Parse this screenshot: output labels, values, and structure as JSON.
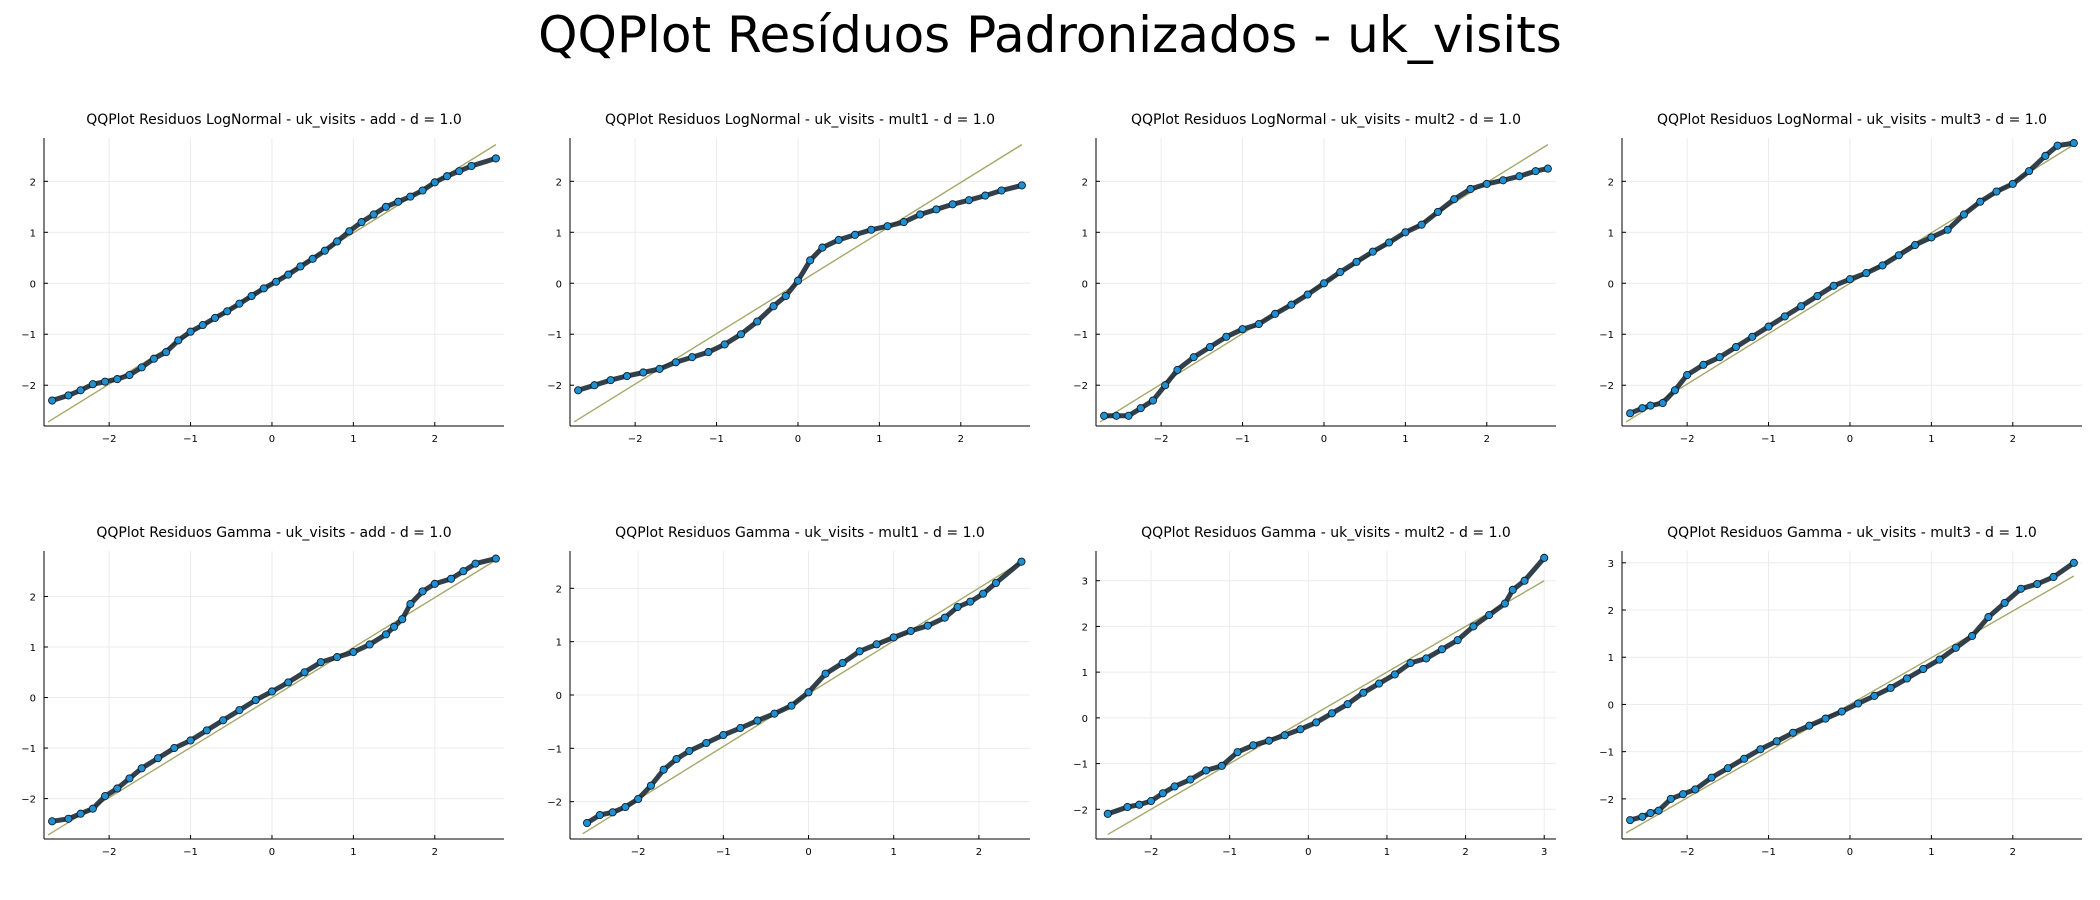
{
  "figure_title": "QQPlot Resíduos Padronizados - uk_visits",
  "colors": {
    "points": "#1f8fd1",
    "point_edge": "#0d1e2a",
    "line": "#a6a86a",
    "grid": "#ececec"
  },
  "chart_data": [
    {
      "type": "scatter",
      "title": "QQPlot Residuos LogNormal - uk_visits - add - d = 1.0",
      "xlim": [
        -2.8,
        2.85
      ],
      "ylim": [
        -2.8,
        2.85
      ],
      "xticks": [
        -2,
        -1,
        0,
        1,
        2
      ],
      "yticks": [
        -2,
        -1,
        0,
        1,
        2
      ],
      "xtick_labels": [
        "−2",
        "−1",
        "0",
        "1",
        "2"
      ],
      "ytick_labels": [
        "−2",
        "−1",
        "0",
        "1",
        "2"
      ],
      "ref_line": [
        [
          -2.75,
          -2.72
        ],
        [
          2.75,
          2.72
        ]
      ],
      "x": [
        -2.7,
        -2.5,
        -2.35,
        -2.2,
        -2.05,
        -1.9,
        -1.75,
        -1.6,
        -1.45,
        -1.3,
        -1.15,
        -1.0,
        -0.85,
        -0.7,
        -0.55,
        -0.4,
        -0.25,
        -0.1,
        0.05,
        0.2,
        0.35,
        0.5,
        0.65,
        0.8,
        0.95,
        1.1,
        1.25,
        1.4,
        1.55,
        1.7,
        1.85,
        2.0,
        2.15,
        2.3,
        2.45,
        2.75
      ],
      "y": [
        -2.3,
        -2.2,
        -2.1,
        -1.98,
        -1.93,
        -1.88,
        -1.8,
        -1.65,
        -1.48,
        -1.35,
        -1.12,
        -0.95,
        -0.82,
        -0.68,
        -0.55,
        -0.4,
        -0.25,
        -0.1,
        0.03,
        0.17,
        0.33,
        0.48,
        0.64,
        0.82,
        1.02,
        1.2,
        1.35,
        1.5,
        1.6,
        1.7,
        1.82,
        1.98,
        2.1,
        2.2,
        2.3,
        2.45
      ]
    },
    {
      "type": "scatter",
      "title": "QQPlot Residuos LogNormal - uk_visits - mult1 - d = 1.0",
      "xlim": [
        -2.8,
        2.85
      ],
      "ylim": [
        -2.8,
        2.85
      ],
      "xticks": [
        -2,
        -1,
        0,
        1,
        2
      ],
      "yticks": [
        -2,
        -1,
        0,
        1,
        2
      ],
      "xtick_labels": [
        "−2",
        "−1",
        "0",
        "1",
        "2"
      ],
      "ytick_labels": [
        "−2",
        "−1",
        "0",
        "1",
        "2"
      ],
      "ref_line": [
        [
          -2.75,
          -2.72
        ],
        [
          2.75,
          2.72
        ]
      ],
      "x": [
        -2.7,
        -2.5,
        -2.3,
        -2.1,
        -1.9,
        -1.7,
        -1.5,
        -1.3,
        -1.1,
        -0.9,
        -0.7,
        -0.5,
        -0.3,
        -0.15,
        0.0,
        0.15,
        0.3,
        0.5,
        0.7,
        0.9,
        1.1,
        1.3,
        1.5,
        1.7,
        1.9,
        2.1,
        2.3,
        2.5,
        2.75
      ],
      "y": [
        -2.1,
        -2.0,
        -1.9,
        -1.82,
        -1.75,
        -1.68,
        -1.55,
        -1.45,
        -1.35,
        -1.2,
        -1.0,
        -0.75,
        -0.45,
        -0.25,
        0.05,
        0.45,
        0.7,
        0.85,
        0.95,
        1.05,
        1.12,
        1.2,
        1.35,
        1.45,
        1.55,
        1.63,
        1.72,
        1.82,
        1.92
      ]
    },
    {
      "type": "scatter",
      "title": "QQPlot Residuos LogNormal - uk_visits - mult2 - d = 1.0",
      "xlim": [
        -2.8,
        2.85
      ],
      "ylim": [
        -2.8,
        2.85
      ],
      "xticks": [
        -2,
        -1,
        0,
        1,
        2
      ],
      "yticks": [
        -2,
        -1,
        0,
        1,
        2
      ],
      "xtick_labels": [
        "−2",
        "−1",
        "0",
        "1",
        "2"
      ],
      "ytick_labels": [
        "−2",
        "−1",
        "0",
        "1",
        "2"
      ],
      "ref_line": [
        [
          -2.75,
          -2.72
        ],
        [
          2.75,
          2.72
        ]
      ],
      "x": [
        -2.7,
        -2.55,
        -2.4,
        -2.25,
        -2.1,
        -1.95,
        -1.8,
        -1.6,
        -1.4,
        -1.2,
        -1.0,
        -0.8,
        -0.6,
        -0.4,
        -0.2,
        0.0,
        0.2,
        0.4,
        0.6,
        0.8,
        1.0,
        1.2,
        1.4,
        1.6,
        1.8,
        2.0,
        2.2,
        2.4,
        2.6,
        2.75
      ],
      "y": [
        -2.6,
        -2.6,
        -2.6,
        -2.45,
        -2.3,
        -2.0,
        -1.7,
        -1.45,
        -1.25,
        -1.05,
        -0.9,
        -0.8,
        -0.6,
        -0.42,
        -0.22,
        0.0,
        0.22,
        0.42,
        0.62,
        0.8,
        1.0,
        1.15,
        1.4,
        1.65,
        1.85,
        1.95,
        2.02,
        2.1,
        2.2,
        2.25
      ]
    },
    {
      "type": "scatter",
      "title": "QQPlot Residuos LogNormal - uk_visits - mult3 - d = 1.0",
      "xlim": [
        -2.8,
        2.85
      ],
      "ylim": [
        -2.8,
        2.85
      ],
      "xticks": [
        -2,
        -1,
        0,
        1,
        2
      ],
      "yticks": [
        -2,
        -1,
        0,
        1,
        2
      ],
      "xtick_labels": [
        "−2",
        "−1",
        "0",
        "1",
        "2"
      ],
      "ytick_labels": [
        "−2",
        "−1",
        "0",
        "1",
        "2"
      ],
      "ref_line": [
        [
          -2.75,
          -2.72
        ],
        [
          2.75,
          2.72
        ]
      ],
      "x": [
        -2.7,
        -2.55,
        -2.45,
        -2.3,
        -2.15,
        -2.0,
        -1.8,
        -1.6,
        -1.4,
        -1.2,
        -1.0,
        -0.8,
        -0.6,
        -0.4,
        -0.2,
        0.0,
        0.2,
        0.4,
        0.6,
        0.8,
        1.0,
        1.2,
        1.4,
        1.6,
        1.8,
        2.0,
        2.2,
        2.4,
        2.55,
        2.75
      ],
      "y": [
        -2.55,
        -2.45,
        -2.4,
        -2.35,
        -2.1,
        -1.8,
        -1.6,
        -1.45,
        -1.25,
        -1.05,
        -0.85,
        -0.65,
        -0.45,
        -0.25,
        -0.05,
        0.08,
        0.2,
        0.35,
        0.55,
        0.75,
        0.9,
        1.05,
        1.35,
        1.6,
        1.8,
        1.95,
        2.2,
        2.5,
        2.7,
        2.75
      ]
    },
    {
      "type": "scatter",
      "title": "QQPlot Residuos Gamma - uk_visits - add - d = 1.0",
      "xlim": [
        -2.8,
        2.85
      ],
      "ylim": [
        -2.8,
        2.9
      ],
      "xticks": [
        -2,
        -1,
        0,
        1,
        2
      ],
      "yticks": [
        -2,
        -1,
        0,
        1,
        2
      ],
      "xtick_labels": [
        "−2",
        "−1",
        "0",
        "1",
        "2"
      ],
      "ytick_labels": [
        "−2",
        "−1",
        "0",
        "1",
        "2"
      ],
      "ref_line": [
        [
          -2.75,
          -2.72
        ],
        [
          2.75,
          2.72
        ]
      ],
      "x": [
        -2.7,
        -2.5,
        -2.35,
        -2.2,
        -2.05,
        -1.9,
        -1.75,
        -1.6,
        -1.4,
        -1.2,
        -1.0,
        -0.8,
        -0.6,
        -0.4,
        -0.2,
        0.0,
        0.2,
        0.4,
        0.6,
        0.8,
        1.0,
        1.2,
        1.4,
        1.5,
        1.6,
        1.7,
        1.85,
        2.0,
        2.2,
        2.35,
        2.5,
        2.75
      ],
      "y": [
        -2.45,
        -2.4,
        -2.3,
        -2.2,
        -1.95,
        -1.8,
        -1.6,
        -1.4,
        -1.2,
        -1.0,
        -0.85,
        -0.65,
        -0.45,
        -0.25,
        -0.05,
        0.12,
        0.3,
        0.5,
        0.7,
        0.8,
        0.9,
        1.05,
        1.25,
        1.4,
        1.55,
        1.85,
        2.1,
        2.25,
        2.35,
        2.5,
        2.65,
        2.75
      ]
    },
    {
      "type": "scatter",
      "title": "QQPlot Residuos Gamma - uk_visits - mult1 - d = 1.0",
      "xlim": [
        -2.8,
        2.6
      ],
      "ylim": [
        -2.7,
        2.7
      ],
      "xticks": [
        -2,
        -1,
        0,
        1,
        2
      ],
      "yticks": [
        -2,
        -1,
        0,
        1,
        2
      ],
      "xtick_labels": [
        "−2",
        "−1",
        "0",
        "1",
        "2"
      ],
      "ytick_labels": [
        "−2",
        "−1",
        "0",
        "1",
        "2"
      ],
      "ref_line": [
        [
          -2.65,
          -2.6
        ],
        [
          2.5,
          2.5
        ]
      ],
      "x": [
        -2.6,
        -2.45,
        -2.3,
        -2.15,
        -2.0,
        -1.85,
        -1.7,
        -1.55,
        -1.4,
        -1.2,
        -1.0,
        -0.8,
        -0.6,
        -0.4,
        -0.2,
        0.0,
        0.2,
        0.4,
        0.6,
        0.8,
        1.0,
        1.2,
        1.4,
        1.6,
        1.75,
        1.9,
        2.05,
        2.2,
        2.5
      ],
      "y": [
        -2.4,
        -2.25,
        -2.2,
        -2.1,
        -1.95,
        -1.7,
        -1.4,
        -1.2,
        -1.05,
        -0.9,
        -0.75,
        -0.62,
        -0.48,
        -0.35,
        -0.2,
        0.05,
        0.4,
        0.6,
        0.82,
        0.95,
        1.08,
        1.2,
        1.3,
        1.45,
        1.65,
        1.75,
        1.9,
        2.1,
        2.5
      ]
    },
    {
      "type": "scatter",
      "title": "QQPlot Residuos Gamma - uk_visits - mult2 - d = 1.0",
      "xlim": [
        -2.7,
        3.15
      ],
      "ylim": [
        -2.65,
        3.65
      ],
      "xticks": [
        -2,
        -1,
        0,
        1,
        2,
        3
      ],
      "yticks": [
        -2,
        -1,
        0,
        1,
        2,
        3
      ],
      "xtick_labels": [
        "−2",
        "−1",
        "0",
        "1",
        "2",
        "3"
      ],
      "ytick_labels": [
        "−2",
        "−1",
        "0",
        "1",
        "2",
        "3"
      ],
      "ref_line": [
        [
          -2.55,
          -2.55
        ],
        [
          3.0,
          3.0
        ]
      ],
      "x": [
        -2.55,
        -2.3,
        -2.15,
        -2.0,
        -1.85,
        -1.7,
        -1.5,
        -1.3,
        -1.1,
        -0.9,
        -0.7,
        -0.5,
        -0.3,
        -0.1,
        0.1,
        0.3,
        0.5,
        0.7,
        0.9,
        1.1,
        1.3,
        1.5,
        1.7,
        1.9,
        2.1,
        2.3,
        2.5,
        2.6,
        2.75,
        3.0
      ],
      "y": [
        -2.1,
        -1.95,
        -1.9,
        -1.82,
        -1.65,
        -1.5,
        -1.35,
        -1.15,
        -1.05,
        -0.75,
        -0.6,
        -0.5,
        -0.38,
        -0.25,
        -0.1,
        0.1,
        0.3,
        0.55,
        0.75,
        0.95,
        1.2,
        1.3,
        1.5,
        1.7,
        2.0,
        2.25,
        2.5,
        2.8,
        3.0,
        3.5
      ]
    },
    {
      "type": "scatter",
      "title": "QQPlot Residuos Gamma - uk_visits - mult3 - d = 1.0",
      "xlim": [
        -2.8,
        2.85
      ],
      "ylim": [
        -2.85,
        3.25
      ],
      "xticks": [
        -2,
        -1,
        0,
        1,
        2
      ],
      "yticks": [
        -2,
        -1,
        0,
        1,
        2,
        3
      ],
      "xtick_labels": [
        "−2",
        "−1",
        "0",
        "1",
        "2"
      ],
      "ytick_labels": [
        "−2",
        "−1",
        "0",
        "1",
        "2",
        "3"
      ],
      "ref_line": [
        [
          -2.75,
          -2.72
        ],
        [
          2.75,
          2.72
        ]
      ],
      "x": [
        -2.7,
        -2.55,
        -2.45,
        -2.35,
        -2.2,
        -2.05,
        -1.9,
        -1.7,
        -1.5,
        -1.3,
        -1.1,
        -0.9,
        -0.7,
        -0.5,
        -0.3,
        -0.1,
        0.1,
        0.3,
        0.5,
        0.7,
        0.9,
        1.1,
        1.3,
        1.5,
        1.7,
        1.9,
        2.1,
        2.3,
        2.5,
        2.75
      ],
      "y": [
        -2.45,
        -2.38,
        -2.3,
        -2.25,
        -2.0,
        -1.9,
        -1.8,
        -1.55,
        -1.35,
        -1.15,
        -0.95,
        -0.78,
        -0.6,
        -0.45,
        -0.3,
        -0.15,
        0.02,
        0.18,
        0.35,
        0.55,
        0.75,
        0.95,
        1.2,
        1.45,
        1.85,
        2.15,
        2.45,
        2.55,
        2.7,
        3.0
      ]
    }
  ]
}
